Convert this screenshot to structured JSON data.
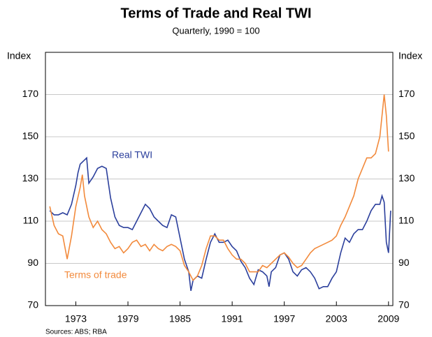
{
  "chart_data": {
    "type": "line",
    "title": "Terms of Trade and Real TWI",
    "subtitle": "Quarterly, 1990 = 100",
    "y_label": "Index",
    "y2_label": "Index",
    "source": "Sources: ABS; RBA",
    "xlim": [
      1969.5,
      2009.5
    ],
    "xticks": [
      1973,
      1979,
      1985,
      1991,
      1997,
      2003,
      2009
    ],
    "ylim": [
      70,
      190
    ],
    "yticks": [
      70,
      90,
      110,
      130,
      150,
      170
    ],
    "y2lim": [
      70,
      190
    ],
    "y2ticks": [
      70,
      90,
      110,
      130,
      150,
      170
    ],
    "grid": true,
    "series": [
      {
        "name": "Real TWI",
        "color": "#2b3f9c",
        "x": [
          1970,
          1970.5,
          1971,
          1971.5,
          1972,
          1972.5,
          1973,
          1973.25,
          1973.5,
          1974,
          1974.25,
          1974.5,
          1975,
          1975.5,
          1976,
          1976.5,
          1977,
          1977.5,
          1978,
          1978.5,
          1979,
          1979.5,
          1980,
          1980.5,
          1981,
          1981.5,
          1982,
          1982.5,
          1983,
          1983.5,
          1984,
          1984.5,
          1985,
          1985.5,
          1986,
          1986.25,
          1986.5,
          1987,
          1987.5,
          1988,
          1988.5,
          1989,
          1989.5,
          1990,
          1990.5,
          1991,
          1991.5,
          1992,
          1992.5,
          1993,
          1993.5,
          1994,
          1994.5,
          1995,
          1995.25,
          1995.5,
          1996,
          1996.5,
          1997,
          1997.5,
          1998,
          1998.5,
          1999,
          1999.5,
          2000,
          2000.5,
          2001,
          2001.5,
          2002,
          2002.5,
          2003,
          2003.5,
          2004,
          2004.5,
          2005,
          2005.5,
          2006,
          2006.5,
          2007,
          2007.5,
          2008,
          2008.25,
          2008.5,
          2008.75,
          2009,
          2009.25
        ],
        "values": [
          115,
          113,
          113,
          114,
          113,
          118,
          127,
          133,
          137,
          139,
          140,
          128,
          131,
          135,
          136,
          135,
          121,
          112,
          108,
          107,
          107,
          106,
          110,
          114,
          118,
          116,
          112,
          110,
          108,
          107,
          113,
          112,
          102,
          92,
          86,
          77,
          82,
          84,
          83,
          92,
          100,
          104,
          100,
          100,
          101,
          98,
          96,
          91,
          88,
          83,
          80,
          87,
          86,
          84,
          79,
          86,
          88,
          94,
          95,
          92,
          86,
          84,
          87,
          88,
          86,
          83,
          78,
          79,
          79,
          83,
          86,
          95,
          102,
          100,
          104,
          106,
          106,
          110,
          115,
          118,
          118,
          122,
          119,
          100,
          95,
          115
        ]
      },
      {
        "name": "Terms of trade",
        "color": "#f28a3c",
        "x": [
          1970,
          1970.5,
          1971,
          1971.5,
          1972,
          1972.5,
          1973,
          1973.5,
          1973.75,
          1974,
          1974.5,
          1975,
          1975.5,
          1976,
          1976.5,
          1977,
          1977.5,
          1978,
          1978.5,
          1979,
          1979.5,
          1980,
          1980.5,
          1981,
          1981.5,
          1982,
          1982.5,
          1983,
          1983.5,
          1984,
          1984.5,
          1985,
          1985.5,
          1986,
          1986.5,
          1987,
          1987.5,
          1988,
          1988.5,
          1989,
          1989.5,
          1990,
          1990.5,
          1991,
          1991.5,
          1992,
          1992.5,
          1993,
          1993.5,
          1994,
          1994.5,
          1995,
          1995.5,
          1996,
          1996.5,
          1997,
          1997.5,
          1998,
          1998.5,
          1999,
          1999.5,
          2000,
          2000.5,
          2001,
          2001.5,
          2002,
          2002.5,
          2003,
          2003.5,
          2004,
          2004.5,
          2005,
          2005.5,
          2006,
          2006.5,
          2007,
          2007.5,
          2008,
          2008.5,
          2008.75,
          2009
        ],
        "values": [
          117,
          108,
          104,
          103,
          92,
          103,
          117,
          126,
          132,
          122,
          112,
          107,
          110,
          106,
          104,
          100,
          97,
          98,
          95,
          97,
          100,
          101,
          98,
          99,
          96,
          99,
          97,
          96,
          98,
          99,
          98,
          96,
          89,
          86,
          82,
          84,
          89,
          97,
          103,
          103,
          101,
          101,
          97,
          94,
          92,
          92,
          90,
          86,
          86,
          86,
          89,
          88,
          90,
          92,
          94,
          95,
          93,
          90,
          88,
          89,
          92,
          95,
          97,
          98,
          99,
          100,
          101,
          103,
          108,
          112,
          117,
          122,
          130,
          135,
          140,
          140,
          142,
          150,
          170,
          160,
          143
        ]
      }
    ]
  }
}
